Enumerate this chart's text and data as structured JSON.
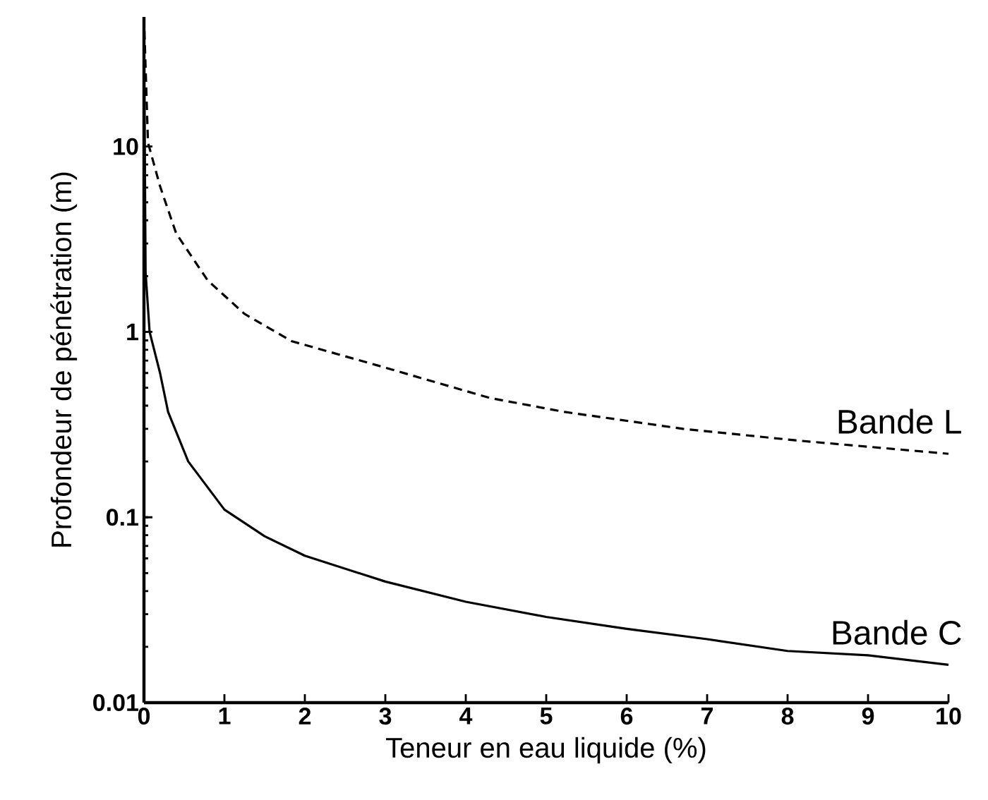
{
  "chart_data": {
    "type": "line",
    "xlabel": "Teneur en eau liquide (%)",
    "ylabel": "Profondeur de pénétration (m)",
    "log": "y",
    "xlim": [
      0,
      10
    ],
    "ylim": [
      0.01,
      50
    ],
    "xticks": [
      0,
      1,
      2,
      3,
      4,
      5,
      6,
      7,
      8,
      9,
      10
    ],
    "yticks": [
      0.01,
      0.1,
      1,
      10
    ],
    "grid": false,
    "legend": false,
    "marker": "none",
    "series": [
      {
        "name": "Bande L",
        "color": "#000000",
        "line_style": "dashed",
        "x": [
          0,
          0.05,
          0.2,
          0.4,
          0.79,
          1.25,
          1.84,
          2.9,
          4.3,
          5.23,
          6.7,
          8.1,
          10
        ],
        "values": [
          50,
          10.5,
          6.1,
          3.4,
          1.9,
          1.25,
          0.89,
          0.66,
          0.44,
          0.37,
          0.3,
          0.26,
          0.22
        ]
      },
      {
        "name": "Bande C",
        "color": "#000000",
        "line_style": "solid",
        "x": [
          0,
          0.02,
          0.07,
          0.2,
          0.3,
          0.55,
          1,
          1.5,
          2,
          3,
          4,
          5,
          6,
          7,
          8,
          9,
          10
        ],
        "values": [
          50,
          2.1,
          1.0,
          0.6,
          0.37,
          0.2,
          0.11,
          0.079,
          0.062,
          0.045,
          0.035,
          0.029,
          0.025,
          0.022,
          0.019,
          0.018,
          0.016
        ]
      }
    ]
  }
}
